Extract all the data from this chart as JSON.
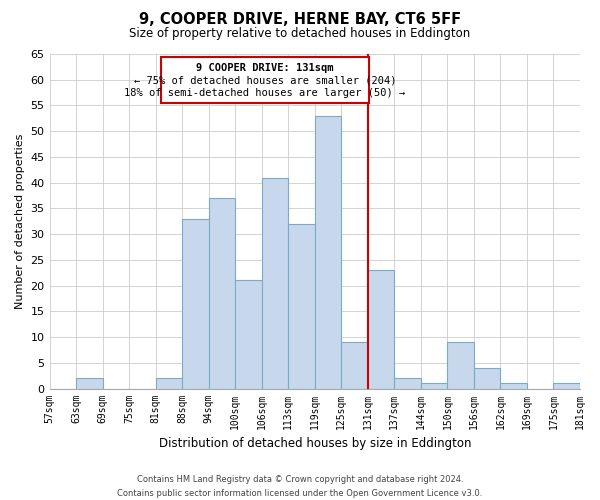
{
  "title": "9, COOPER DRIVE, HERNE BAY, CT6 5FF",
  "subtitle": "Size of property relative to detached houses in Eddington",
  "xlabel": "Distribution of detached houses by size in Eddington",
  "ylabel": "Number of detached properties",
  "bin_labels": [
    "57sqm",
    "63sqm",
    "69sqm",
    "75sqm",
    "81sqm",
    "88sqm",
    "94sqm",
    "100sqm",
    "106sqm",
    "113sqm",
    "119sqm",
    "125sqm",
    "131sqm",
    "137sqm",
    "144sqm",
    "150sqm",
    "156sqm",
    "162sqm",
    "169sqm",
    "175sqm",
    "181sqm"
  ],
  "bin_values": [
    0,
    2,
    0,
    0,
    2,
    33,
    37,
    21,
    41,
    32,
    53,
    9,
    23,
    2,
    1,
    9,
    4,
    1,
    0,
    1
  ],
  "bar_color": "#c8d8ec",
  "bar_edge_color": "#7aaac8",
  "highlight_line_color": "#cc0000",
  "annotation_title": "9 COOPER DRIVE: 131sqm",
  "annotation_line1": "← 75% of detached houses are smaller (204)",
  "annotation_line2": "18% of semi-detached houses are larger (50) →",
  "annotation_box_edge": "#cc0000",
  "ylim": [
    0,
    65
  ],
  "yticks": [
    0,
    5,
    10,
    15,
    20,
    25,
    30,
    35,
    40,
    45,
    50,
    55,
    60,
    65
  ],
  "footer_line1": "Contains HM Land Registry data © Crown copyright and database right 2024.",
  "footer_line2": "Contains public sector information licensed under the Open Government Licence v3.0.",
  "background_color": "#ffffff",
  "grid_color": "#cccccc"
}
